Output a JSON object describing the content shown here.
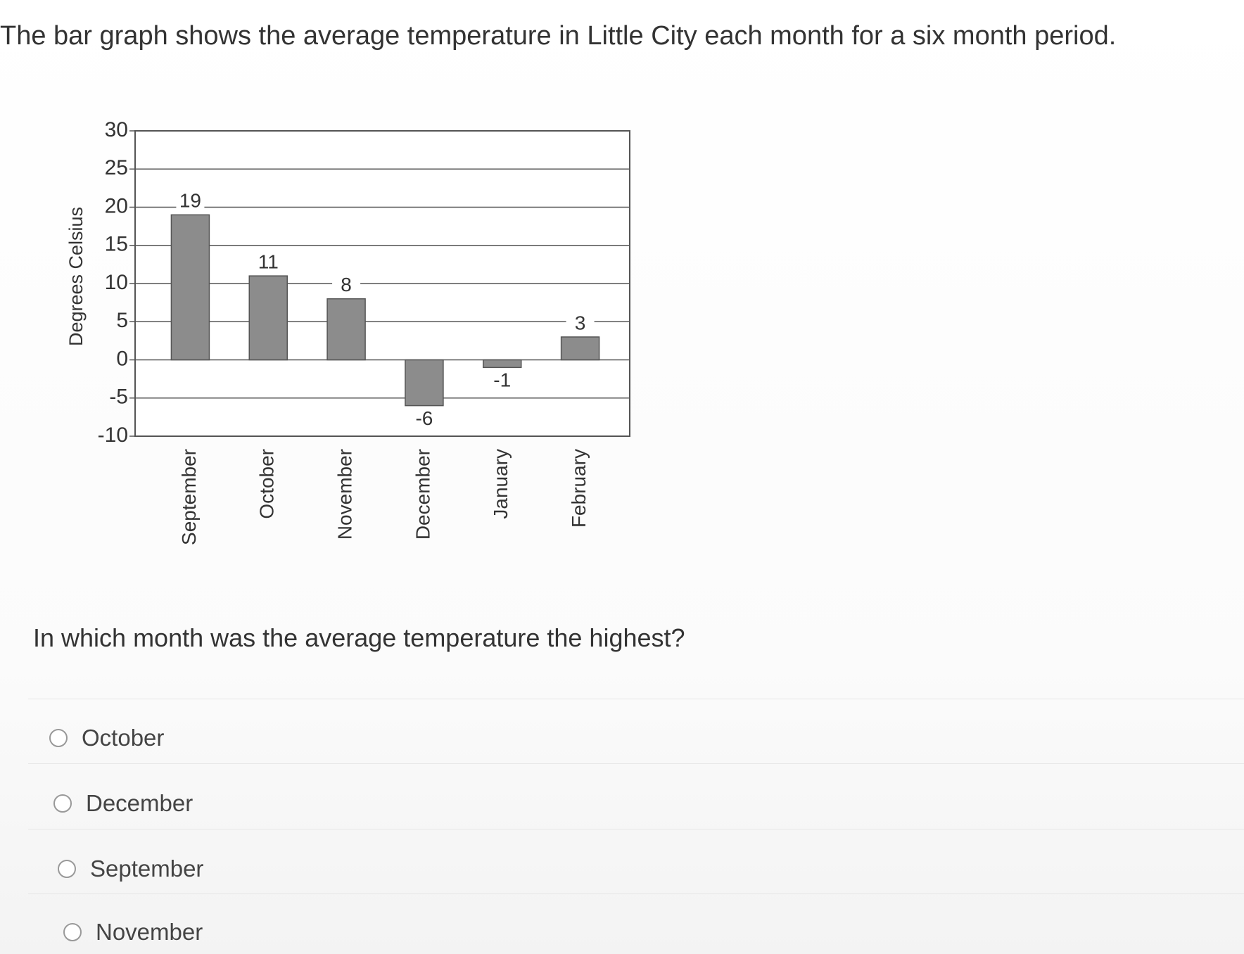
{
  "prompt": "The bar graph shows the average temperature in Little City each month for a six month period.",
  "chart_data": {
    "type": "bar",
    "y_label": "Degrees Celsius",
    "categories": [
      "September",
      "October",
      "November",
      "December",
      "January",
      "February"
    ],
    "values": [
      19,
      11,
      8,
      -6,
      -1,
      3
    ],
    "color": "#8c8c8c",
    "ylim": [
      -10,
      30
    ],
    "yticks": [
      -10,
      -5,
      0,
      5,
      10,
      15,
      20,
      25,
      30
    ],
    "grid": true
  },
  "question": "In which month was the average temperature the highest?",
  "options": [
    "October",
    "December",
    "September",
    "November"
  ]
}
